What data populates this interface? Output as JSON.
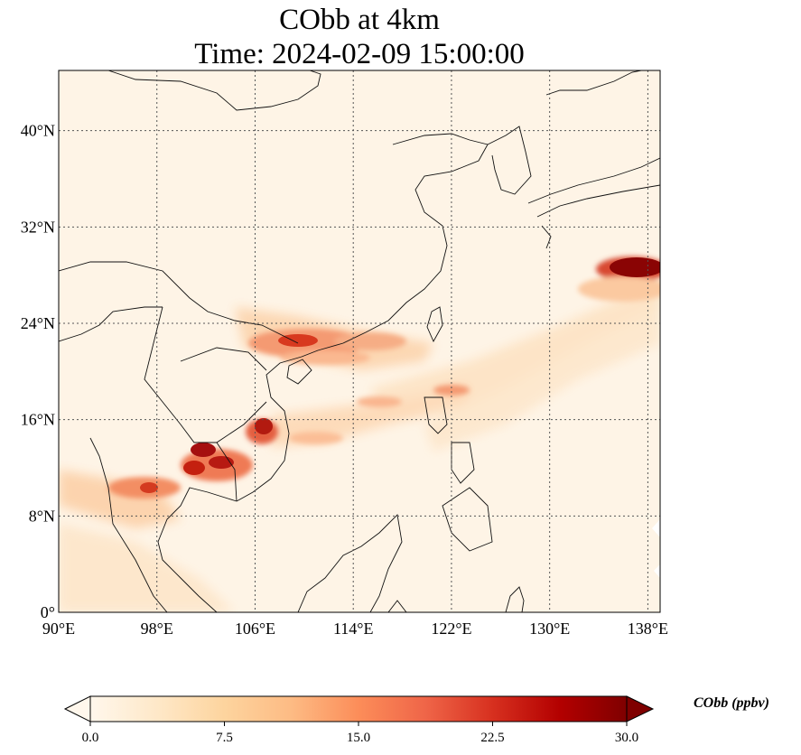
{
  "title": {
    "line1": "CObb at 4km",
    "line2": "Time: 2024-02-09 15:00:00"
  },
  "map": {
    "lon_range": [
      90,
      139
    ],
    "lat_range": [
      0,
      45
    ],
    "lat_ticks": [
      {
        "value": 0,
        "label": "0°"
      },
      {
        "value": 8,
        "label": "8°N"
      },
      {
        "value": 16,
        "label": "16°N"
      },
      {
        "value": 24,
        "label": "24°N"
      },
      {
        "value": 32,
        "label": "32°N"
      },
      {
        "value": 40,
        "label": "40°N"
      }
    ],
    "lon_ticks": [
      {
        "value": 90,
        "label": "90°E"
      },
      {
        "value": 98,
        "label": "98°E"
      },
      {
        "value": 106,
        "label": "106°E"
      },
      {
        "value": 114,
        "label": "114°E"
      },
      {
        "value": 122,
        "label": "122°E"
      },
      {
        "value": 130,
        "label": "130°E"
      },
      {
        "value": 138,
        "label": "138°E"
      }
    ],
    "gridlines": true,
    "colormap": [
      "#fff7ec",
      "#fee8c8",
      "#fdd49e",
      "#fdbb84",
      "#fc8d59",
      "#ef6548",
      "#d7301f",
      "#b30000",
      "#7f0000"
    ]
  },
  "colorbar": {
    "label": "CObb (ppbv)",
    "range": [
      0,
      30
    ],
    "ticks": [
      "0.0",
      "7.5",
      "15.0",
      "22.5",
      "30.0"
    ],
    "extend": "both"
  }
}
